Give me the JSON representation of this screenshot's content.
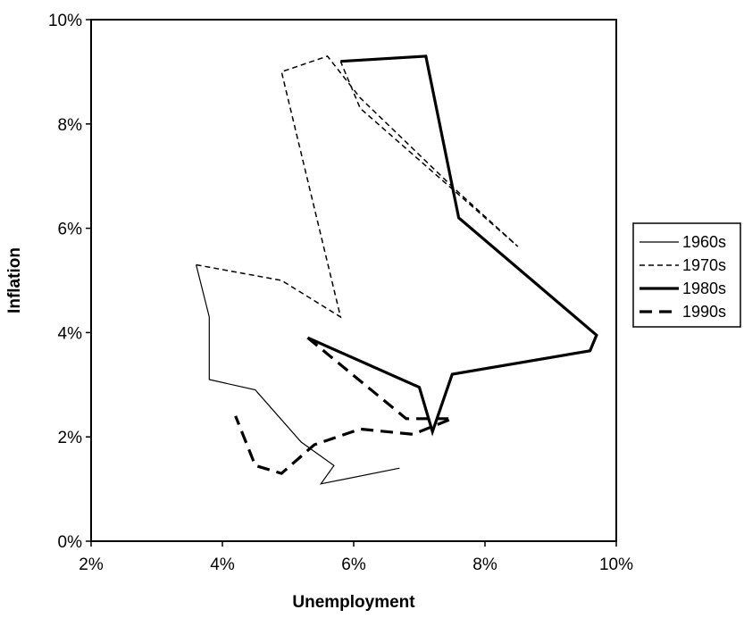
{
  "chart_data": {
    "type": "line",
    "title": "",
    "xlabel": "Unemployment",
    "ylabel": "Inflation",
    "xlim": [
      2,
      10
    ],
    "ylim": [
      0,
      10
    ],
    "x_ticks": [
      2,
      4,
      6,
      8,
      10
    ],
    "y_ticks": [
      0,
      2,
      4,
      6,
      8,
      10
    ],
    "x_tick_labels": [
      "2%",
      "4%",
      "6%",
      "8%",
      "10%"
    ],
    "y_tick_labels": [
      "0%",
      "2%",
      "4%",
      "6%",
      "8%",
      "10%"
    ],
    "grid": false,
    "legend_position": "right",
    "series": [
      {
        "name": "1960s",
        "style": "thin-solid",
        "color": "#000000",
        "points": [
          [
            6.7,
            1.4
          ],
          [
            5.5,
            1.1
          ],
          [
            5.7,
            1.45
          ],
          [
            5.2,
            1.9
          ],
          [
            4.5,
            2.9
          ],
          [
            3.8,
            3.1
          ],
          [
            3.8,
            4.3
          ],
          [
            3.6,
            5.3
          ]
        ]
      },
      {
        "name": "1970s",
        "style": "thin-dashed",
        "color": "#000000",
        "points": [
          [
            3.6,
            5.3
          ],
          [
            4.9,
            5.0
          ],
          [
            5.8,
            4.3
          ],
          [
            4.9,
            9.0
          ],
          [
            5.6,
            9.3
          ],
          [
            6.1,
            8.5
          ],
          [
            7.5,
            6.8
          ],
          [
            8.5,
            5.65
          ],
          [
            6.1,
            8.3
          ],
          [
            5.8,
            9.2
          ]
        ]
      },
      {
        "name": "1980s",
        "style": "thick-solid",
        "color": "#000000",
        "points": [
          [
            5.8,
            9.2
          ],
          [
            7.1,
            9.3
          ],
          [
            7.6,
            6.2
          ],
          [
            9.7,
            3.95
          ],
          [
            9.6,
            3.65
          ],
          [
            7.5,
            3.2
          ],
          [
            7.2,
            2.1
          ],
          [
            7.0,
            2.95
          ],
          [
            5.3,
            3.9
          ]
        ]
      },
      {
        "name": "1990s",
        "style": "thick-dashed",
        "color": "#000000",
        "points": [
          [
            5.3,
            3.9
          ],
          [
            6.8,
            2.35
          ],
          [
            7.5,
            2.35
          ],
          [
            6.9,
            2.05
          ],
          [
            6.1,
            2.15
          ],
          [
            5.4,
            1.85
          ],
          [
            4.9,
            1.3
          ],
          [
            4.5,
            1.45
          ],
          [
            4.2,
            2.4
          ]
        ]
      }
    ]
  }
}
